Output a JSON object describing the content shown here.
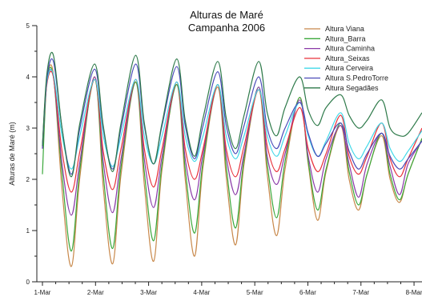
{
  "chart_data": {
    "type": "line",
    "title": "Alturas de Maré",
    "subtitle": "Campanha 2006",
    "ylabel": "Alturas de Maré (m)",
    "xlabel": "",
    "ylim": [
      0,
      5
    ],
    "xlim": [
      0,
      7.15
    ],
    "yticks": [
      "0",
      "1",
      "2",
      "3",
      "4",
      "5"
    ],
    "x_tick_positions": [
      0,
      1,
      2,
      3,
      4,
      5,
      6,
      7
    ],
    "x_tick_labels": [
      "1-Mar",
      "2-Mar",
      "3-Mar",
      "4-Mar",
      "5-Mar",
      "6-Mar",
      "7-Mar",
      "8-Mar"
    ],
    "grid": false,
    "legend_position": "top-right",
    "series": [
      {
        "name": "Altura Viana",
        "color": "#c8884a",
        "x": [
          0,
          0.083,
          0.207,
          0.369,
          0.545,
          0.706,
          0.983,
          1.145,
          1.321,
          1.482,
          1.758,
          1.918,
          2.094,
          2.254,
          2.53,
          2.69,
          2.866,
          3.026,
          3.302,
          3.462,
          3.638,
          3.798,
          4.074,
          4.234,
          4.41,
          4.571,
          4.846,
          5.006,
          5.183,
          5.343,
          5.618,
          5.778,
          5.955,
          6.115,
          6.39,
          6.55,
          6.727,
          6.887,
          7.15
        ],
        "values": [
          2.65,
          3.95,
          4.05,
          1.8,
          0.3,
          2.05,
          4.0,
          1.85,
          0.35,
          2.1,
          3.9,
          1.9,
          0.4,
          2.2,
          3.85,
          2.0,
          0.5,
          2.25,
          3.8,
          2.05,
          0.72,
          2.3,
          3.75,
          2.1,
          0.9,
          2.2,
          3.6,
          2.3,
          1.2,
          2.15,
          3.05,
          2.0,
          1.4,
          2.1,
          2.85,
          2.0,
          1.55,
          2.1,
          2.8
        ]
      },
      {
        "name": "Altura_Barra",
        "color": "#3aa83a",
        "x": [
          0,
          0.083,
          0.207,
          0.369,
          0.545,
          0.706,
          0.983,
          1.145,
          1.321,
          1.482,
          1.758,
          1.918,
          2.094,
          2.254,
          2.53,
          2.69,
          2.866,
          3.026,
          3.302,
          3.462,
          3.638,
          3.798,
          4.074,
          4.234,
          4.41,
          4.571,
          4.846,
          5.006,
          5.183,
          5.343,
          5.618,
          5.778,
          5.955,
          6.115,
          6.39,
          6.55,
          6.727,
          6.887,
          7.15
        ],
        "values": [
          2.1,
          3.9,
          4.0,
          2.1,
          0.6,
          2.2,
          3.95,
          2.1,
          0.65,
          2.25,
          3.9,
          2.15,
          0.8,
          2.3,
          3.85,
          2.2,
          0.95,
          2.35,
          3.85,
          2.25,
          1.05,
          2.4,
          3.8,
          2.3,
          1.25,
          2.35,
          3.6,
          2.35,
          1.4,
          2.2,
          3.1,
          2.15,
          1.5,
          2.1,
          2.9,
          2.1,
          1.6,
          2.1,
          2.8
        ]
      },
      {
        "name": "Altura Caminha",
        "color": "#8a3aa8",
        "x": [
          0,
          0.083,
          0.207,
          0.369,
          0.545,
          0.706,
          0.983,
          1.145,
          1.321,
          1.482,
          1.758,
          1.918,
          2.094,
          2.254,
          2.53,
          2.69,
          2.866,
          3.026,
          3.302,
          3.462,
          3.638,
          3.798,
          4.074,
          4.234,
          4.41,
          4.571,
          4.846,
          5.006,
          5.183,
          5.343,
          5.618,
          5.778,
          5.955,
          6.115,
          6.39,
          6.55,
          6.727,
          6.887,
          7.15
        ],
        "values": [
          2.6,
          3.9,
          4.0,
          2.3,
          1.3,
          2.35,
          4.0,
          2.35,
          1.35,
          2.4,
          3.95,
          2.4,
          1.45,
          2.45,
          3.9,
          2.4,
          1.6,
          2.5,
          3.85,
          2.45,
          1.7,
          2.5,
          3.8,
          2.45,
          1.9,
          2.5,
          3.55,
          2.45,
          1.75,
          2.4,
          3.05,
          2.3,
          1.65,
          2.3,
          2.9,
          2.25,
          1.7,
          2.3,
          2.75
        ]
      },
      {
        "name": "Altura_Seixas",
        "color": "#e8303a",
        "x": [
          0,
          0.083,
          0.207,
          0.369,
          0.545,
          0.706,
          0.983,
          1.145,
          1.321,
          1.482,
          1.758,
          1.918,
          2.094,
          2.254,
          2.53,
          2.69,
          2.866,
          3.026,
          3.302,
          3.462,
          3.638,
          3.798,
          4.074,
          4.234,
          4.41,
          4.571,
          4.846,
          5.006,
          5.183,
          5.343,
          5.618,
          5.778,
          5.955,
          6.115,
          6.39,
          6.55,
          6.727,
          6.887,
          7.15
        ],
        "values": [
          2.6,
          3.85,
          4.0,
          2.55,
          1.75,
          2.55,
          3.95,
          2.55,
          1.8,
          2.6,
          3.95,
          2.6,
          1.85,
          2.6,
          3.9,
          2.6,
          2.0,
          2.6,
          3.85,
          2.6,
          2.05,
          2.65,
          3.75,
          2.65,
          2.15,
          2.6,
          3.4,
          2.6,
          2.15,
          2.5,
          3.25,
          2.45,
          2.1,
          2.45,
          3.1,
          2.4,
          2.05,
          2.4,
          3.0
        ]
      },
      {
        "name": "Altura Cerveira",
        "color": "#40d8e8",
        "x": [
          0,
          0.083,
          0.207,
          0.369,
          0.545,
          0.706,
          0.983,
          1.145,
          1.321,
          1.482,
          1.758,
          1.918,
          2.094,
          2.254,
          2.53,
          2.69,
          2.866,
          3.026,
          3.302,
          3.462,
          3.638,
          3.798,
          4.074,
          4.234,
          4.41,
          4.571,
          4.846,
          5.006,
          5.183,
          5.343,
          5.618,
          5.778,
          5.955,
          6.115,
          6.39,
          6.55,
          6.727,
          6.887,
          7.15
        ],
        "values": [
          2.65,
          3.9,
          4.05,
          2.85,
          2.2,
          2.85,
          3.95,
          2.85,
          2.25,
          2.85,
          3.95,
          2.85,
          2.3,
          2.85,
          3.9,
          2.85,
          2.35,
          2.85,
          3.85,
          2.85,
          2.4,
          2.85,
          3.75,
          2.85,
          2.45,
          2.85,
          3.5,
          2.85,
          2.45,
          2.75,
          3.3,
          2.7,
          2.4,
          2.65,
          3.1,
          2.6,
          2.35,
          2.55,
          2.95
        ]
      },
      {
        "name": "Altura S.PedroTorre",
        "color": "#4a4ab8",
        "x": [
          0,
          0.083,
          0.207,
          0.369,
          0.545,
          0.706,
          0.983,
          1.145,
          1.321,
          1.482,
          1.758,
          1.918,
          2.094,
          2.254,
          2.53,
          2.69,
          2.866,
          3.026,
          3.302,
          3.462,
          3.638,
          3.798,
          4.074,
          4.234,
          4.41,
          4.571,
          4.846,
          5.006,
          5.183,
          5.343,
          5.618,
          5.778,
          5.955,
          6.115,
          6.39,
          6.55,
          6.727,
          6.887,
          7.15
        ],
        "values": [
          2.6,
          3.95,
          4.3,
          3.0,
          2.1,
          3.0,
          4.15,
          3.0,
          2.2,
          3.0,
          4.25,
          3.05,
          2.3,
          3.05,
          4.2,
          3.05,
          2.4,
          3.05,
          4.1,
          3.05,
          2.5,
          3.05,
          4.0,
          3.0,
          2.6,
          3.0,
          3.5,
          2.9,
          2.45,
          2.7,
          3.1,
          2.55,
          2.2,
          2.5,
          2.9,
          2.45,
          2.2,
          2.4,
          2.75
        ]
      },
      {
        "name": "Altura Segadães",
        "color": "#2e7a4a",
        "x": [
          0,
          0.083,
          0.207,
          0.369,
          0.545,
          0.706,
          0.983,
          1.145,
          1.321,
          1.482,
          1.758,
          1.918,
          2.094,
          2.254,
          2.53,
          2.69,
          2.866,
          3.026,
          3.302,
          3.462,
          3.638,
          3.798,
          4.074,
          4.234,
          4.41,
          4.571,
          4.846,
          5.006,
          5.183,
          5.343,
          5.618,
          5.778,
          5.955,
          6.115,
          6.39,
          6.55,
          6.727,
          6.887,
          7.15
        ],
        "values": [
          2.65,
          4.05,
          4.42,
          3.0,
          2.05,
          3.1,
          4.25,
          3.05,
          2.15,
          3.1,
          4.42,
          3.1,
          2.3,
          3.1,
          4.35,
          3.15,
          2.45,
          3.2,
          4.3,
          3.2,
          2.6,
          3.25,
          4.3,
          3.3,
          2.85,
          3.4,
          4.0,
          3.35,
          3.05,
          3.4,
          3.65,
          3.25,
          3.0,
          3.15,
          3.55,
          3.0,
          2.85,
          2.9,
          3.3
        ]
      }
    ]
  }
}
